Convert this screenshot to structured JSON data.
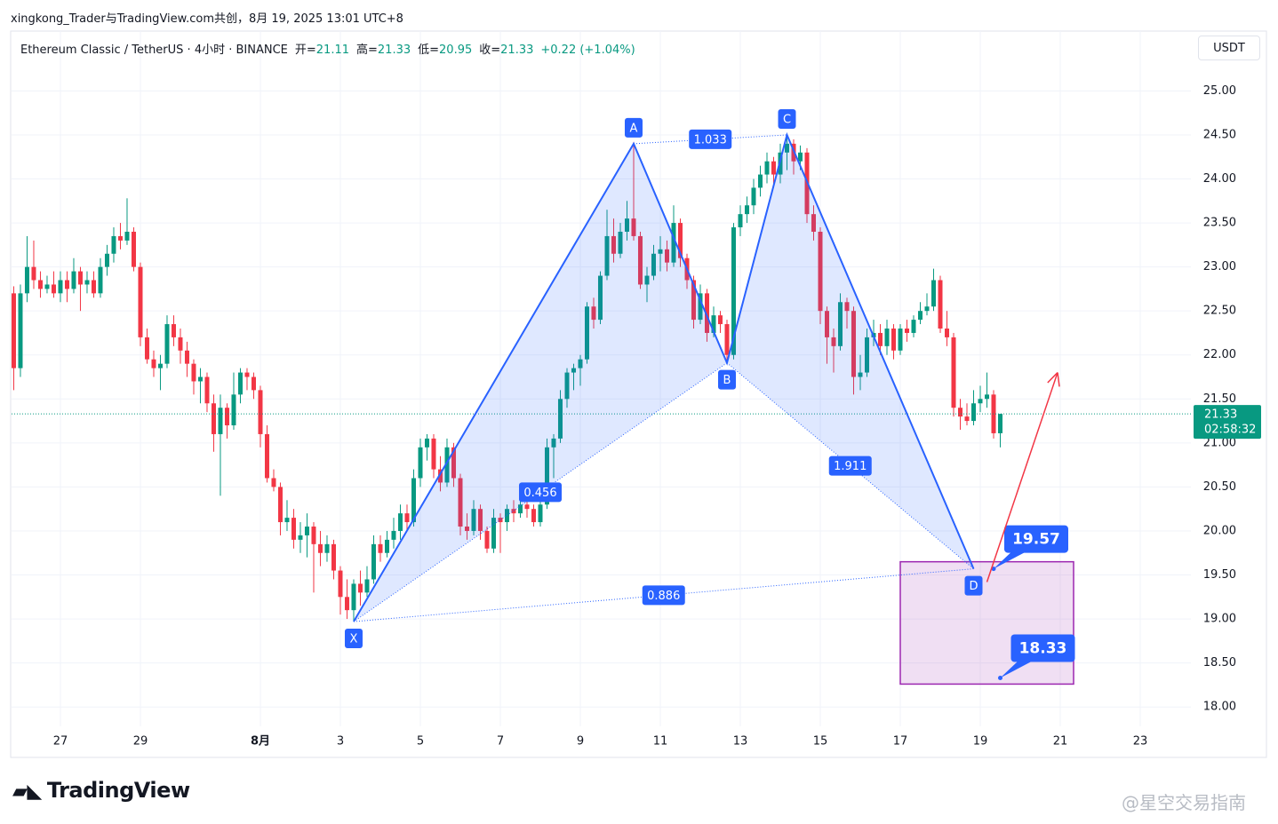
{
  "chart_data": {
    "type": "candlestick",
    "title": "xingkong_Trader与TradingView.com共创，8月 19, 2025 13:01 UTC+8",
    "symbol": "Ethereum Classic / TetherUS · 4小时 · BINANCE",
    "quote": [
      {
        "label": "开=",
        "value": "21.11"
      },
      {
        "label": "高=",
        "value": "21.33"
      },
      {
        "label": "低=",
        "value": "20.95"
      },
      {
        "label": "收=",
        "value": "21.33"
      }
    ],
    "change": "+0.22 (+1.04%)",
    "currency": "USDT",
    "last_price_label": "21.33",
    "countdown": "02:58:32",
    "up_color": "#089981",
    "down_color": "#f23645",
    "ylim": [
      17.78,
      25.68
    ],
    "yticks": [
      {
        "value": 18,
        "label": "18.00"
      },
      {
        "value": 18.5,
        "label": "18.50"
      },
      {
        "value": 19,
        "label": "19.00"
      },
      {
        "value": 19.5,
        "label": "19.50"
      },
      {
        "value": 20,
        "label": "20.00"
      },
      {
        "value": 20.5,
        "label": "20.50"
      },
      {
        "value": 21,
        "label": "21.00"
      },
      {
        "value": 21.5,
        "label": "21.50"
      },
      {
        "value": 22,
        "label": "22.00"
      },
      {
        "value": 22.5,
        "label": "22.50"
      },
      {
        "value": 23,
        "label": "23.00"
      },
      {
        "value": 23.5,
        "label": "23.50"
      },
      {
        "value": 24,
        "label": "24.00"
      },
      {
        "value": 24.5,
        "label": "24.50"
      },
      {
        "value": 25,
        "label": "25.00"
      }
    ],
    "xlim": [
      -7.33,
      169.6
    ],
    "xticks": [
      {
        "value": 0,
        "label": "27"
      },
      {
        "value": 12,
        "label": "29"
      },
      {
        "value": 30,
        "label": "8月"
      },
      {
        "value": 42,
        "label": "3"
      },
      {
        "value": 54,
        "label": "5"
      },
      {
        "value": 66,
        "label": "7"
      },
      {
        "value": 78,
        "label": "9"
      },
      {
        "value": 90,
        "label": "11"
      },
      {
        "value": 102,
        "label": "13"
      },
      {
        "value": 114,
        "label": "15"
      },
      {
        "value": 126,
        "label": "17"
      },
      {
        "value": 138,
        "label": "19"
      },
      {
        "value": 150,
        "label": "21"
      },
      {
        "value": 162,
        "label": "23"
      }
    ],
    "grid": true,
    "x": [
      -7,
      -6,
      -5,
      -4,
      -3,
      -2,
      -1,
      0,
      1,
      2,
      3,
      4,
      5,
      6,
      7,
      8,
      9,
      10,
      11,
      12,
      13,
      14,
      15,
      16,
      17,
      18,
      19,
      20,
      21,
      22,
      23,
      24,
      25,
      26,
      27,
      28,
      29,
      30,
      31,
      32,
      33,
      34,
      35,
      36,
      37,
      38,
      39,
      40,
      41,
      42,
      43,
      44,
      45,
      46,
      47,
      48,
      49,
      50,
      51,
      52,
      53,
      54,
      55,
      56,
      57,
      58,
      59,
      60,
      61,
      62,
      63,
      64,
      65,
      66,
      67,
      68,
      69,
      70,
      71,
      72,
      73,
      74,
      75,
      76,
      77,
      78,
      79,
      80,
      81,
      82,
      83,
      84,
      85,
      86,
      87,
      88,
      89,
      90,
      91,
      92,
      93,
      94,
      95,
      96,
      97,
      98,
      99,
      100,
      101,
      102,
      103,
      104,
      105,
      106,
      107,
      108,
      109,
      110,
      111,
      112,
      113,
      114,
      115,
      116,
      117,
      118,
      119,
      120,
      121,
      122,
      123,
      124,
      125,
      126,
      127,
      128,
      129,
      130,
      131,
      132,
      133,
      134,
      135,
      136,
      137,
      138,
      139,
      140,
      141
    ],
    "ohlc": [
      [
        22.7,
        22.78,
        21.6,
        21.85
      ],
      [
        21.85,
        22.8,
        21.75,
        22.7
      ],
      [
        22.7,
        23.35,
        22.6,
        23.0
      ],
      [
        23.0,
        23.3,
        22.75,
        22.85
      ],
      [
        22.85,
        22.95,
        22.65,
        22.75
      ],
      [
        22.75,
        22.9,
        22.7,
        22.8
      ],
      [
        22.8,
        22.95,
        22.65,
        22.7
      ],
      [
        22.7,
        22.95,
        22.6,
        22.85
      ],
      [
        22.85,
        22.95,
        22.6,
        22.75
      ],
      [
        22.75,
        23.1,
        22.7,
        22.95
      ],
      [
        22.95,
        23.0,
        22.5,
        22.8
      ],
      [
        22.8,
        22.95,
        22.7,
        22.85
      ],
      [
        22.85,
        22.95,
        22.65,
        22.7
      ],
      [
        22.7,
        23.1,
        22.65,
        23.0
      ],
      [
        23.0,
        23.25,
        22.9,
        23.15
      ],
      [
        23.15,
        23.45,
        23.05,
        23.35
      ],
      [
        23.35,
        23.5,
        23.2,
        23.3
      ],
      [
        23.3,
        23.78,
        23.25,
        23.4
      ],
      [
        23.4,
        23.45,
        22.95,
        23.0
      ],
      [
        23.0,
        23.05,
        22.1,
        22.2
      ],
      [
        22.2,
        22.3,
        21.9,
        21.95
      ],
      [
        21.95,
        22.05,
        21.75,
        21.85
      ],
      [
        21.85,
        22.0,
        21.6,
        21.9
      ],
      [
        21.9,
        22.45,
        21.85,
        22.35
      ],
      [
        22.35,
        22.45,
        22.1,
        22.2
      ],
      [
        22.2,
        22.3,
        21.9,
        22.05
      ],
      [
        22.05,
        22.15,
        21.75,
        21.9
      ],
      [
        21.9,
        21.95,
        21.55,
        21.7
      ],
      [
        21.7,
        21.85,
        21.45,
        21.75
      ],
      [
        21.75,
        21.8,
        21.35,
        21.45
      ],
      [
        21.45,
        21.55,
        20.9,
        21.1
      ],
      [
        21.1,
        21.55,
        20.4,
        21.4
      ],
      [
        21.4,
        21.45,
        21.05,
        21.2
      ],
      [
        21.2,
        21.8,
        21.15,
        21.55
      ],
      [
        21.55,
        21.85,
        21.45,
        21.8
      ],
      [
        21.8,
        21.85,
        21.6,
        21.75
      ],
      [
        21.75,
        21.8,
        21.5,
        21.6
      ],
      [
        21.6,
        21.65,
        20.95,
        21.1
      ],
      [
        21.1,
        21.2,
        20.55,
        20.6
      ],
      [
        20.6,
        20.7,
        20.45,
        20.5
      ],
      [
        20.5,
        20.55,
        19.95,
        20.1
      ],
      [
        20.1,
        20.35,
        20.0,
        20.15
      ],
      [
        20.15,
        20.25,
        19.8,
        19.9
      ],
      [
        19.9,
        20.1,
        19.75,
        19.95
      ],
      [
        19.95,
        20.2,
        19.7,
        20.05
      ],
      [
        20.05,
        20.1,
        19.3,
        19.85
      ],
      [
        19.85,
        20.0,
        19.6,
        19.75
      ],
      [
        19.75,
        19.95,
        19.65,
        19.85
      ],
      [
        19.85,
        19.9,
        19.45,
        19.55
      ],
      [
        19.55,
        19.6,
        19.05,
        19.25
      ],
      [
        19.25,
        19.45,
        19.0,
        19.1
      ],
      [
        19.1,
        19.45,
        18.97,
        19.4
      ],
      [
        19.4,
        19.55,
        19.15,
        19.3
      ],
      [
        19.3,
        19.6,
        19.25,
        19.45
      ],
      [
        19.45,
        19.95,
        19.4,
        19.85
      ],
      [
        19.85,
        19.95,
        19.65,
        19.75
      ],
      [
        19.75,
        20.0,
        19.7,
        19.9
      ],
      [
        19.9,
        20.15,
        19.8,
        20.0
      ],
      [
        20.0,
        20.3,
        19.9,
        20.2
      ],
      [
        20.2,
        20.3,
        20.0,
        20.1
      ],
      [
        20.1,
        20.7,
        20.05,
        20.6
      ],
      [
        20.6,
        21.05,
        20.5,
        20.95
      ],
      [
        20.95,
        21.1,
        20.8,
        21.05
      ],
      [
        21.05,
        21.1,
        20.6,
        20.7
      ],
      [
        20.7,
        20.85,
        20.45,
        20.55
      ],
      [
        20.55,
        21.05,
        20.5,
        20.95
      ],
      [
        20.95,
        21.0,
        20.5,
        20.6
      ],
      [
        20.6,
        20.65,
        19.95,
        20.05
      ],
      [
        20.05,
        20.2,
        19.9,
        20.0
      ],
      [
        20.0,
        20.35,
        19.95,
        20.25
      ],
      [
        20.25,
        20.3,
        19.9,
        20.0
      ],
      [
        20.0,
        20.05,
        19.75,
        19.8
      ],
      [
        19.8,
        20.25,
        19.75,
        20.15
      ],
      [
        20.15,
        20.2,
        19.75,
        20.1
      ],
      [
        20.1,
        20.3,
        20.0,
        20.25
      ],
      [
        20.25,
        20.35,
        20.1,
        20.2
      ],
      [
        20.2,
        20.4,
        20.15,
        20.3
      ],
      [
        20.3,
        20.35,
        20.15,
        20.25
      ],
      [
        20.25,
        20.3,
        20.05,
        20.1
      ],
      [
        20.1,
        20.45,
        20.05,
        20.3
      ],
      [
        20.3,
        21.05,
        20.25,
        20.95
      ],
      [
        20.95,
        21.1,
        20.6,
        21.05
      ],
      [
        21.05,
        21.6,
        21.0,
        21.5
      ],
      [
        21.5,
        21.85,
        21.4,
        21.8
      ],
      [
        21.8,
        21.9,
        21.6,
        21.85
      ],
      [
        21.85,
        22.0,
        21.65,
        21.95
      ],
      [
        21.95,
        22.6,
        21.9,
        22.55
      ],
      [
        22.55,
        22.65,
        22.3,
        22.4
      ],
      [
        22.4,
        22.95,
        22.35,
        22.9
      ],
      [
        22.9,
        23.65,
        22.85,
        23.35
      ],
      [
        23.35,
        23.55,
        23.05,
        23.15
      ],
      [
        23.15,
        23.5,
        23.1,
        23.4
      ],
      [
        23.4,
        23.75,
        23.3,
        23.55
      ],
      [
        23.55,
        24.42,
        23.3,
        23.35
      ],
      [
        23.35,
        23.4,
        22.75,
        22.8
      ],
      [
        22.8,
        23.0,
        22.6,
        22.9
      ],
      [
        22.9,
        23.25,
        22.85,
        23.15
      ],
      [
        23.15,
        23.35,
        22.95,
        23.2
      ],
      [
        23.2,
        23.3,
        22.95,
        23.05
      ],
      [
        23.05,
        23.7,
        23.0,
        23.5
      ],
      [
        23.5,
        23.55,
        23.0,
        23.1
      ],
      [
        23.1,
        23.15,
        22.75,
        22.85
      ],
      [
        22.85,
        22.9,
        22.3,
        22.4
      ],
      [
        22.4,
        22.8,
        22.35,
        22.7
      ],
      [
        22.7,
        22.75,
        22.15,
        22.25
      ],
      [
        22.25,
        22.55,
        22.2,
        22.45
      ],
      [
        22.45,
        22.5,
        22.25,
        22.35
      ],
      [
        22.35,
        22.4,
        21.91,
        22.0
      ],
      [
        22.0,
        23.5,
        21.95,
        23.45
      ],
      [
        23.45,
        23.7,
        23.35,
        23.6
      ],
      [
        23.6,
        23.8,
        23.5,
        23.7
      ],
      [
        23.7,
        24.0,
        23.6,
        23.9
      ],
      [
        23.9,
        24.15,
        23.8,
        24.05
      ],
      [
        24.05,
        24.3,
        23.95,
        24.2
      ],
      [
        24.2,
        24.25,
        23.9,
        24.05
      ],
      [
        24.05,
        24.4,
        23.95,
        24.3
      ],
      [
        24.3,
        24.5,
        24.1,
        24.4
      ],
      [
        24.4,
        24.45,
        24.05,
        24.2
      ],
      [
        24.2,
        24.38,
        24.1,
        24.3
      ],
      [
        24.3,
        24.35,
        23.5,
        23.6
      ],
      [
        23.6,
        23.7,
        23.3,
        23.4
      ],
      [
        23.4,
        23.45,
        22.35,
        22.5
      ],
      [
        22.5,
        22.55,
        21.9,
        22.2
      ],
      [
        22.2,
        22.3,
        21.8,
        22.1
      ],
      [
        22.1,
        22.7,
        22.05,
        22.6
      ],
      [
        22.6,
        22.65,
        22.3,
        22.5
      ],
      [
        22.5,
        22.55,
        21.55,
        21.75
      ],
      [
        21.75,
        22.0,
        21.6,
        21.8
      ],
      [
        21.8,
        22.3,
        21.75,
        22.2
      ],
      [
        22.2,
        22.4,
        22.1,
        22.25
      ],
      [
        22.25,
        22.35,
        22.0,
        22.1
      ],
      [
        22.1,
        22.4,
        22.0,
        22.3
      ],
      [
        22.3,
        22.35,
        21.95,
        22.05
      ],
      [
        22.05,
        22.35,
        22.0,
        22.3
      ],
      [
        22.3,
        22.4,
        22.15,
        22.25
      ],
      [
        22.25,
        22.45,
        22.2,
        22.4
      ],
      [
        22.4,
        22.6,
        22.35,
        22.5
      ],
      [
        22.5,
        22.7,
        22.45,
        22.55
      ],
      [
        22.55,
        22.98,
        22.5,
        22.85
      ],
      [
        22.85,
        22.9,
        22.25,
        22.3
      ],
      [
        22.3,
        22.5,
        22.1,
        22.2
      ],
      [
        22.2,
        22.25,
        21.3,
        21.4
      ],
      [
        21.4,
        21.5,
        21.15,
        21.3
      ],
      [
        21.3,
        21.45,
        21.2,
        21.25
      ],
      [
        21.25,
        21.6,
        21.2,
        21.45
      ],
      [
        21.45,
        21.65,
        21.35,
        21.5
      ],
      [
        21.5,
        21.8,
        21.4,
        21.55
      ],
      [
        21.55,
        21.6,
        21.05,
        21.11
      ],
      [
        21.11,
        21.33,
        20.95,
        21.33
      ]
    ],
    "pattern": {
      "color": "#2962ff",
      "points": [
        {
          "label": "X",
          "x": 44,
          "y": 18.97
        },
        {
          "label": "A",
          "x": 86,
          "y": 24.4
        },
        {
          "label": "B",
          "x": 100,
          "y": 21.91
        },
        {
          "label": "C",
          "x": 109,
          "y": 24.5
        },
        {
          "label": "D",
          "x": 137,
          "y": 19.57
        }
      ],
      "ratios": [
        "0.456",
        "1.033",
        "1.911",
        "0.886"
      ]
    },
    "target_zone": {
      "x": [
        126,
        152
      ],
      "y": [
        19.65,
        18.26
      ],
      "color": "#9c27b0"
    },
    "target_levels": [
      {
        "x": 140,
        "y": 19.57
      },
      {
        "x": 141,
        "y": 18.33
      }
    ],
    "projection": {
      "x": [
        139,
        149.6
      ],
      "y": [
        19.42,
        21.8
      ],
      "color": "#f23645"
    },
    "brand": "TradingView",
    "watermark": "@星空交易指南"
  }
}
